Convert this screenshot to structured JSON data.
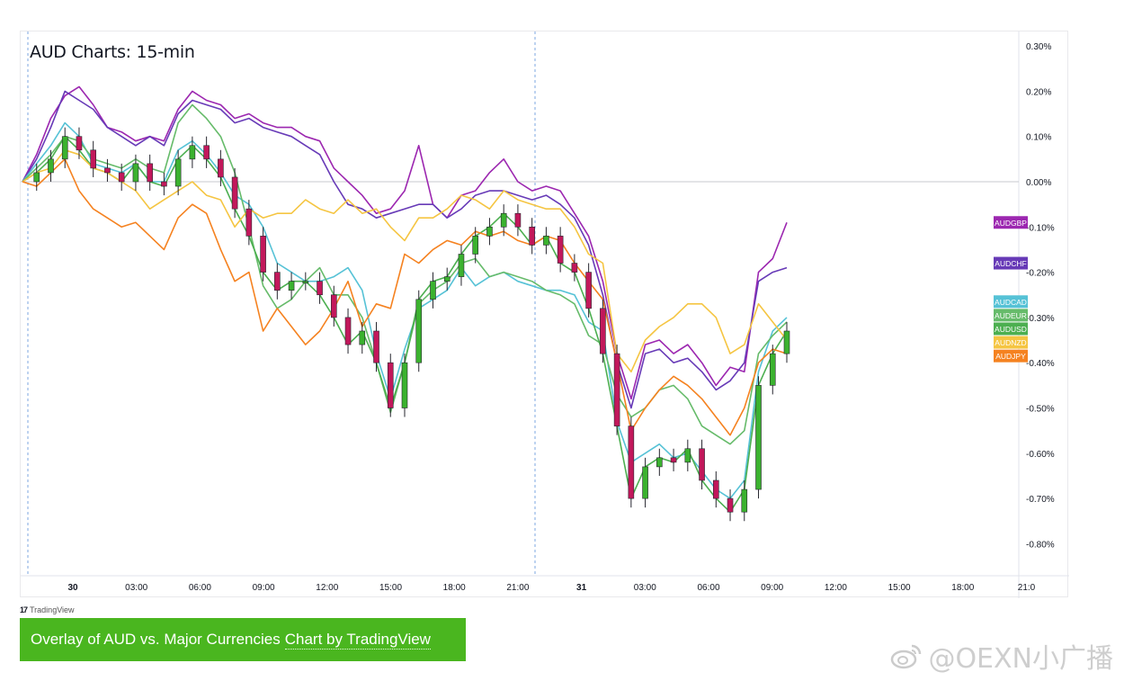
{
  "chart_data": {
    "type": "line",
    "title": "AUD Charts: 15-min",
    "x_ticks": [
      "30",
      "03:00",
      "06:00",
      "09:00",
      "12:00",
      "15:00",
      "18:00",
      "21:00",
      "31",
      "03:00",
      "06:00",
      "09:00",
      "12:00",
      "15:00",
      "18:00",
      "21:0"
    ],
    "y_ticks": [
      "0.30%",
      "0.20%",
      "0.10%",
      "0.00%",
      "-0.10%",
      "-0.20%",
      "-0.30%",
      "-0.40%",
      "-0.50%",
      "-0.60%",
      "-0.70%",
      "-0.80%"
    ],
    "ylim": [
      -0.85,
      0.33
    ],
    "y_unit": "%",
    "grid": false,
    "zero_line": true,
    "session_markers": [
      "30",
      "31"
    ],
    "legend_position": "right",
    "series": [
      {
        "name": "AUDGBP",
        "color": "#9c27b0",
        "last": -0.09,
        "values": [
          0.0,
          0.06,
          0.14,
          0.19,
          0.21,
          0.17,
          0.12,
          0.11,
          0.09,
          0.1,
          0.09,
          0.16,
          0.2,
          0.18,
          0.17,
          0.14,
          0.15,
          0.13,
          0.12,
          0.12,
          0.1,
          0.09,
          0.03,
          0.0,
          -0.03,
          -0.07,
          -0.06,
          -0.02,
          0.08,
          -0.05,
          -0.08,
          -0.03,
          -0.02,
          0.02,
          0.05,
          0.0,
          -0.02,
          -0.01,
          -0.02,
          -0.07,
          -0.12,
          -0.22,
          -0.38,
          -0.48,
          -0.36,
          -0.35,
          -0.38,
          -0.36,
          -0.4,
          -0.45,
          -0.41,
          -0.42,
          -0.2,
          -0.17,
          -0.09
        ]
      },
      {
        "name": "AUDCHF",
        "color": "#673ab7",
        "last": -0.19,
        "values": [
          0.0,
          0.05,
          0.12,
          0.2,
          0.18,
          0.16,
          0.12,
          0.1,
          0.08,
          0.1,
          0.08,
          0.15,
          0.18,
          0.17,
          0.16,
          0.13,
          0.14,
          0.12,
          0.11,
          0.1,
          0.08,
          0.06,
          0.0,
          -0.05,
          -0.06,
          -0.08,
          -0.07,
          -0.06,
          -0.05,
          -0.05,
          -0.08,
          -0.06,
          -0.03,
          -0.02,
          -0.02,
          -0.03,
          -0.04,
          -0.03,
          -0.05,
          -0.08,
          -0.14,
          -0.25,
          -0.4,
          -0.5,
          -0.38,
          -0.37,
          -0.4,
          -0.39,
          -0.42,
          -0.46,
          -0.44,
          -0.4,
          -0.22,
          -0.2,
          -0.19
        ]
      },
      {
        "name": "AUDCAD",
        "color": "#56c2d6",
        "last": -0.3,
        "values": [
          0.0,
          0.04,
          0.08,
          0.13,
          0.1,
          0.04,
          0.03,
          0.02,
          0.04,
          0.0,
          0.0,
          0.07,
          0.09,
          0.06,
          0.02,
          -0.03,
          -0.05,
          -0.1,
          -0.18,
          -0.2,
          -0.22,
          -0.22,
          -0.21,
          -0.19,
          -0.24,
          -0.38,
          -0.48,
          -0.37,
          -0.28,
          -0.26,
          -0.24,
          -0.19,
          -0.23,
          -0.21,
          -0.2,
          -0.22,
          -0.23,
          -0.24,
          -0.24,
          -0.25,
          -0.31,
          -0.33,
          -0.53,
          -0.62,
          -0.6,
          -0.58,
          -0.61,
          -0.6,
          -0.64,
          -0.68,
          -0.7,
          -0.66,
          -0.42,
          -0.33,
          -0.3
        ]
      },
      {
        "name": "AUDEUR",
        "color": "#66bb6a",
        "last": -0.31,
        "values": [
          0.0,
          0.03,
          0.06,
          0.1,
          0.09,
          0.05,
          0.04,
          0.03,
          0.05,
          0.03,
          0.02,
          0.13,
          0.17,
          0.14,
          0.1,
          0.02,
          -0.1,
          -0.23,
          -0.28,
          -0.26,
          -0.22,
          -0.19,
          -0.25,
          -0.25,
          -0.3,
          -0.4,
          -0.51,
          -0.4,
          -0.27,
          -0.24,
          -0.22,
          -0.18,
          -0.17,
          -0.21,
          -0.2,
          -0.21,
          -0.22,
          -0.24,
          -0.25,
          -0.27,
          -0.34,
          -0.36,
          -0.47,
          -0.52,
          -0.5,
          -0.46,
          -0.45,
          -0.48,
          -0.54,
          -0.56,
          -0.58,
          -0.55,
          -0.38,
          -0.34,
          -0.31
        ]
      },
      {
        "name": "AUDUSD",
        "color": "#4caf50",
        "last": -0.33,
        "values": [
          0.0,
          0.02,
          0.05,
          0.1,
          0.07,
          0.03,
          0.02,
          0.0,
          0.04,
          0.0,
          -0.01,
          0.05,
          0.08,
          0.05,
          0.01,
          -0.06,
          -0.12,
          -0.2,
          -0.24,
          -0.22,
          -0.22,
          -0.25,
          -0.3,
          -0.36,
          -0.33,
          -0.4,
          -0.5,
          -0.4,
          -0.26,
          -0.22,
          -0.21,
          -0.16,
          -0.12,
          -0.1,
          -0.07,
          -0.1,
          -0.14,
          -0.12,
          -0.18,
          -0.2,
          -0.28,
          -0.38,
          -0.54,
          -0.7,
          -0.63,
          -0.61,
          -0.62,
          -0.59,
          -0.66,
          -0.7,
          -0.73,
          -0.68,
          -0.45,
          -0.38,
          -0.33
        ]
      },
      {
        "name": "AUDNZD",
        "color": "#f5c542",
        "last": -0.35,
        "values": [
          0.0,
          0.02,
          0.03,
          0.07,
          0.06,
          0.03,
          0.02,
          0.0,
          -0.02,
          -0.06,
          -0.04,
          -0.02,
          0.0,
          -0.03,
          -0.04,
          -0.1,
          -0.06,
          -0.08,
          -0.07,
          -0.07,
          -0.04,
          -0.06,
          -0.07,
          -0.04,
          -0.07,
          -0.06,
          -0.1,
          -0.13,
          -0.08,
          -0.08,
          -0.06,
          -0.03,
          -0.04,
          -0.06,
          -0.02,
          -0.04,
          -0.05,
          -0.06,
          -0.06,
          -0.1,
          -0.16,
          -0.18,
          -0.38,
          -0.42,
          -0.35,
          -0.32,
          -0.3,
          -0.27,
          -0.27,
          -0.3,
          -0.38,
          -0.36,
          -0.27,
          -0.31,
          -0.35
        ]
      },
      {
        "name": "AUDJPY",
        "color": "#f58220",
        "last": -0.38,
        "values": [
          0.0,
          -0.01,
          0.02,
          0.05,
          -0.02,
          -0.06,
          -0.08,
          -0.1,
          -0.09,
          -0.12,
          -0.15,
          -0.08,
          -0.05,
          -0.07,
          -0.15,
          -0.22,
          -0.2,
          -0.33,
          -0.28,
          -0.32,
          -0.36,
          -0.33,
          -0.28,
          -0.22,
          -0.32,
          -0.27,
          -0.28,
          -0.16,
          -0.18,
          -0.15,
          -0.13,
          -0.14,
          -0.11,
          -0.12,
          -0.11,
          -0.13,
          -0.14,
          -0.12,
          -0.13,
          -0.18,
          -0.22,
          -0.26,
          -0.4,
          -0.55,
          -0.5,
          -0.46,
          -0.43,
          -0.45,
          -0.48,
          -0.52,
          -0.56,
          -0.5,
          -0.4,
          -0.37,
          -0.38
        ]
      }
    ]
  },
  "footer": {
    "tradingview_logo": "TradingView",
    "caption_text": "Overlay of AUD vs. Major Currencies",
    "caption_link": "Chart by TradingView",
    "watermark": "@OEXN小广播"
  }
}
